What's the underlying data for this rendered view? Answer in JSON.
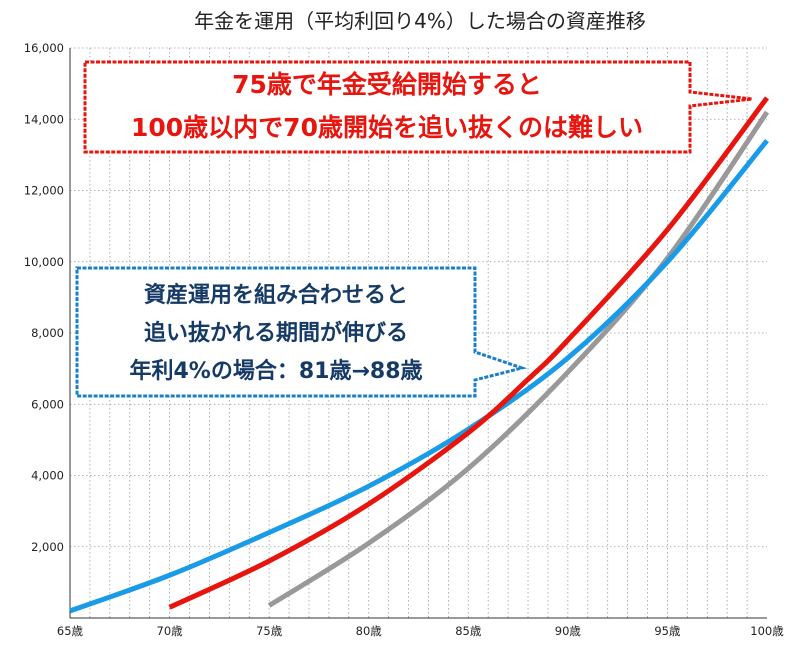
{
  "chart_data": {
    "type": "line",
    "title": "年金を運用（平均利回り4%）した場合の資産推移",
    "xlabel": "",
    "ylabel": "",
    "xlim": [
      65,
      100
    ],
    "ylim": [
      0,
      16000
    ],
    "x_tick_labels": [
      {
        "x": 65,
        "label": "65歳"
      },
      {
        "x": 70,
        "label": "70歳"
      },
      {
        "x": 75,
        "label": "75歳"
      },
      {
        "x": 80,
        "label": "80歳"
      },
      {
        "x": 85,
        "label": "85歳"
      },
      {
        "x": 90,
        "label": "90歳"
      },
      {
        "x": 95,
        "label": "95歳"
      },
      {
        "x": 100,
        "label": "100歳"
      }
    ],
    "y_tick_labels": [
      {
        "y": 2000,
        "label": "2,000"
      },
      {
        "y": 4000,
        "label": "4,000"
      },
      {
        "y": 6000,
        "label": "6,000"
      },
      {
        "y": 8000,
        "label": "8,000"
      },
      {
        "y": 10000,
        "label": "10,000"
      },
      {
        "y": 12000,
        "label": "12,000"
      },
      {
        "y": 14000,
        "label": "14,000"
      },
      {
        "y": 16000,
        "label": "16,000"
      }
    ],
    "grid": {
      "vertical_minor": true,
      "horizontal": true
    },
    "series": [
      {
        "color": "#1a9be8",
        "x": [
          65,
          70,
          75,
          80,
          85,
          90,
          95,
          100
        ],
        "y": [
          200,
          1200,
          2400,
          3700,
          5300,
          7300,
          10000,
          13400
        ]
      },
      {
        "color": "#e8140e",
        "x": [
          70,
          75,
          80,
          85,
          88,
          90,
          95,
          100
        ],
        "y": [
          300,
          1600,
          3200,
          5200,
          6700,
          7800,
          10900,
          14600
        ]
      },
      {
        "color": "#999999",
        "x": [
          75,
          80,
          85,
          90,
          95,
          100
        ],
        "y": [
          350,
          2100,
          4200,
          6900,
          10100,
          14200
        ]
      }
    ],
    "annotations": [
      {
        "lines": [
          "75歳で年金受給開始すると",
          "100歳以内で70歳開始を追い抜くのは難しい"
        ],
        "color": "#e8140e"
      },
      {
        "lines": [
          "資産運用を組み合わせると",
          "追い抜かれる期間が伸びる",
          "年利4%の場合：81歳→88歳"
        ],
        "color": "#1a7fc9"
      }
    ]
  }
}
